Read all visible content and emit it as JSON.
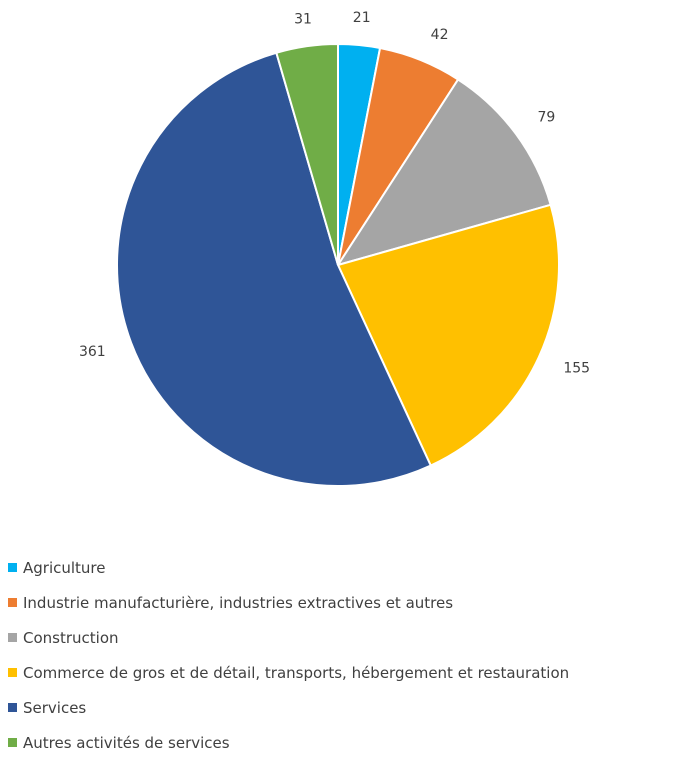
{
  "chart_data": {
    "type": "pie",
    "title": "",
    "slices": [
      {
        "label": "Agriculture",
        "value": 21,
        "color": "#00B0F0"
      },
      {
        "label": "Industrie manufacturière, industries extractives et autres",
        "value": 42,
        "color": "#ED7D31"
      },
      {
        "label": "Construction",
        "value": 79,
        "color": "#A5A5A5"
      },
      {
        "label": "Commerce de gros et de détail, transports, hébergement et restauration",
        "value": 155,
        "color": "#FFC000"
      },
      {
        "label": "Services",
        "value": 361,
        "color": "#2F5597"
      },
      {
        "label": "Autres activités de services",
        "value": 31,
        "color": "#70AD47"
      }
    ],
    "start": "12 o'clock",
    "direction": "clockwise",
    "legend_position": "bottom"
  }
}
